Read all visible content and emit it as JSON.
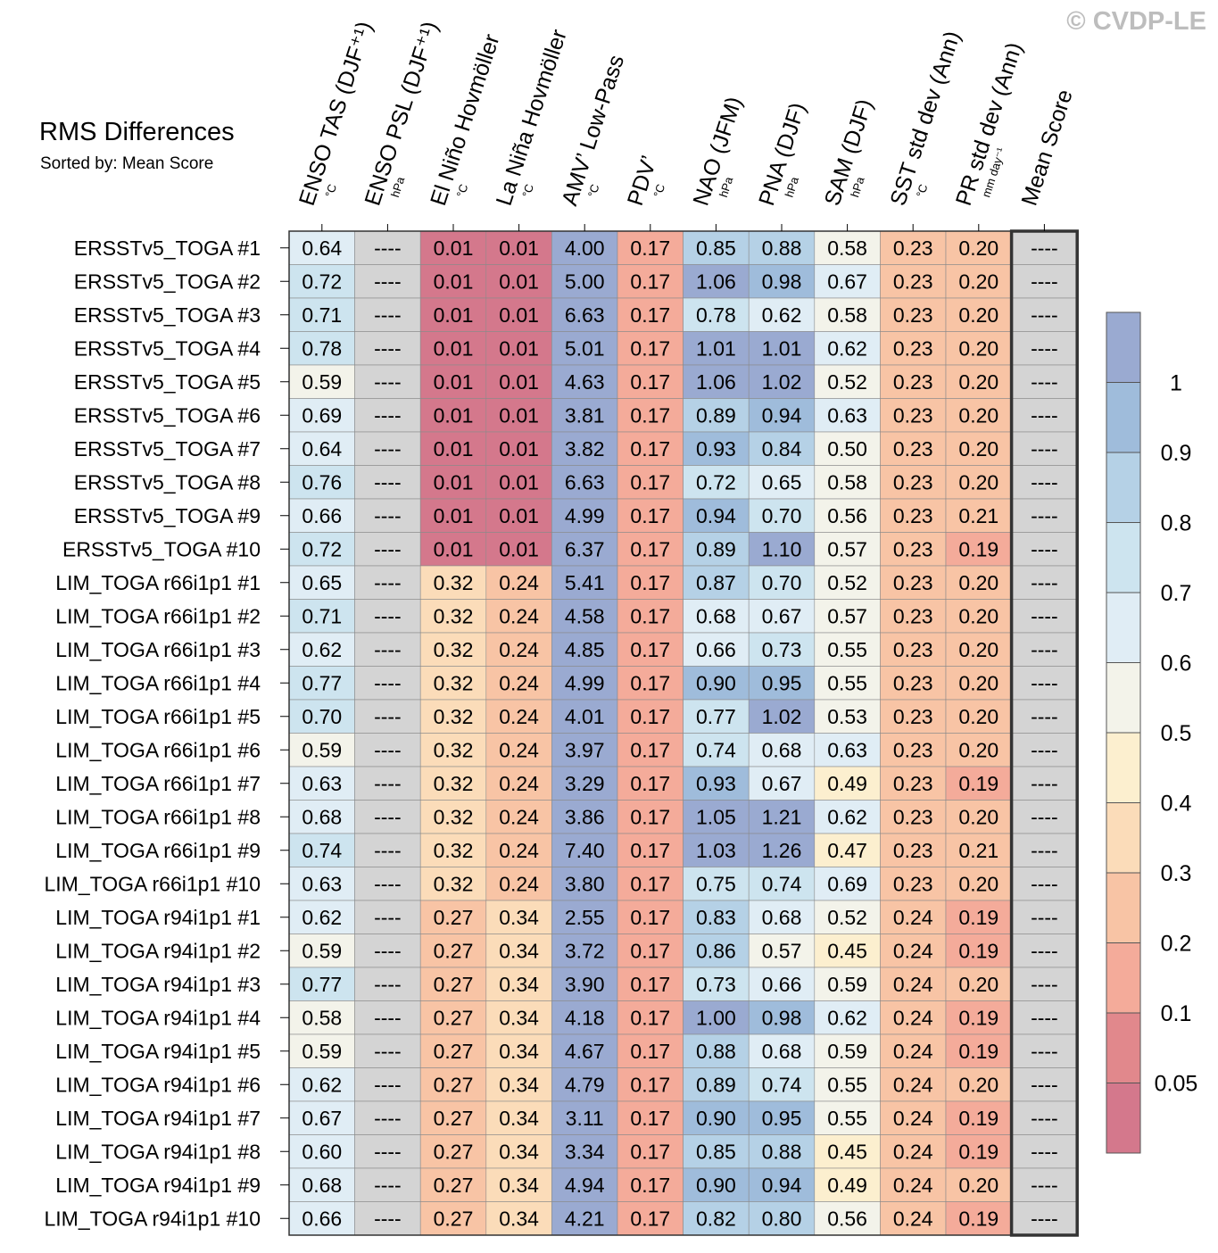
{
  "watermark": "© CVDP-LE",
  "chart_data": {
    "type": "heatmap",
    "title": "RMS Differences",
    "subtitle": "Sorted by: Mean Score",
    "missing_label": "----",
    "columns": [
      {
        "name": "ENSO TAS (DJF⁺¹)",
        "unit": "°C"
      },
      {
        "name": "ENSO PSL (DJF⁺¹)",
        "unit": "hPa"
      },
      {
        "name": "El Niño Hovmöller",
        "unit": "°C"
      },
      {
        "name": "La Niña Hovmöller",
        "unit": "°C"
      },
      {
        "name": "AMV’ Low-Pass",
        "unit": "°C"
      },
      {
        "name": "PDV’",
        "unit": "°C"
      },
      {
        "name": "NAO (JFM)",
        "unit": "hPa"
      },
      {
        "name": "PNA (DJF)",
        "unit": "hPa"
      },
      {
        "name": "SAM (DJF)",
        "unit": "hPa"
      },
      {
        "name": "SST std dev (Ann)",
        "unit": "°C"
      },
      {
        "name": "PR std dev (Ann)",
        "unit": "mm day⁻¹"
      },
      {
        "name": "Mean Score",
        "unit": ""
      }
    ],
    "rows": [
      {
        "label": "ERSSTv5_TOGA #1",
        "values": [
          "0.64",
          "----",
          "0.01",
          "0.01",
          "4.00",
          "0.17",
          "0.85",
          "0.88",
          "0.58",
          "0.23",
          "0.20",
          "----"
        ]
      },
      {
        "label": "ERSSTv5_TOGA #2",
        "values": [
          "0.72",
          "----",
          "0.01",
          "0.01",
          "5.00",
          "0.17",
          "1.06",
          "0.98",
          "0.67",
          "0.23",
          "0.20",
          "----"
        ]
      },
      {
        "label": "ERSSTv5_TOGA #3",
        "values": [
          "0.71",
          "----",
          "0.01",
          "0.01",
          "6.63",
          "0.17",
          "0.78",
          "0.62",
          "0.58",
          "0.23",
          "0.20",
          "----"
        ]
      },
      {
        "label": "ERSSTv5_TOGA #4",
        "values": [
          "0.78",
          "----",
          "0.01",
          "0.01",
          "5.01",
          "0.17",
          "1.01",
          "1.01",
          "0.62",
          "0.23",
          "0.20",
          "----"
        ]
      },
      {
        "label": "ERSSTv5_TOGA #5",
        "values": [
          "0.59",
          "----",
          "0.01",
          "0.01",
          "4.63",
          "0.17",
          "1.06",
          "1.02",
          "0.52",
          "0.23",
          "0.20",
          "----"
        ]
      },
      {
        "label": "ERSSTv5_TOGA #6",
        "values": [
          "0.69",
          "----",
          "0.01",
          "0.01",
          "3.81",
          "0.17",
          "0.89",
          "0.94",
          "0.63",
          "0.23",
          "0.20",
          "----"
        ]
      },
      {
        "label": "ERSSTv5_TOGA #7",
        "values": [
          "0.64",
          "----",
          "0.01",
          "0.01",
          "3.82",
          "0.17",
          "0.93",
          "0.84",
          "0.50",
          "0.23",
          "0.20",
          "----"
        ]
      },
      {
        "label": "ERSSTv5_TOGA #8",
        "values": [
          "0.76",
          "----",
          "0.01",
          "0.01",
          "6.63",
          "0.17",
          "0.72",
          "0.65",
          "0.58",
          "0.23",
          "0.20",
          "----"
        ]
      },
      {
        "label": "ERSSTv5_TOGA #9",
        "values": [
          "0.66",
          "----",
          "0.01",
          "0.01",
          "4.99",
          "0.17",
          "0.94",
          "0.70",
          "0.56",
          "0.23",
          "0.21",
          "----"
        ]
      },
      {
        "label": "ERSSTv5_TOGA #10",
        "values": [
          "0.72",
          "----",
          "0.01",
          "0.01",
          "6.37",
          "0.17",
          "0.89",
          "1.10",
          "0.57",
          "0.23",
          "0.19",
          "----"
        ]
      },
      {
        "label": "LIM_TOGA r66i1p1 #1",
        "values": [
          "0.65",
          "----",
          "0.32",
          "0.24",
          "5.41",
          "0.17",
          "0.87",
          "0.70",
          "0.52",
          "0.23",
          "0.20",
          "----"
        ]
      },
      {
        "label": "LIM_TOGA r66i1p1 #2",
        "values": [
          "0.71",
          "----",
          "0.32",
          "0.24",
          "4.58",
          "0.17",
          "0.68",
          "0.67",
          "0.57",
          "0.23",
          "0.20",
          "----"
        ]
      },
      {
        "label": "LIM_TOGA r66i1p1 #3",
        "values": [
          "0.62",
          "----",
          "0.32",
          "0.24",
          "4.85",
          "0.17",
          "0.66",
          "0.73",
          "0.55",
          "0.23",
          "0.20",
          "----"
        ]
      },
      {
        "label": "LIM_TOGA r66i1p1 #4",
        "values": [
          "0.77",
          "----",
          "0.32",
          "0.24",
          "4.99",
          "0.17",
          "0.90",
          "0.95",
          "0.55",
          "0.23",
          "0.20",
          "----"
        ]
      },
      {
        "label": "LIM_TOGA r66i1p1 #5",
        "values": [
          "0.70",
          "----",
          "0.32",
          "0.24",
          "4.01",
          "0.17",
          "0.77",
          "1.02",
          "0.53",
          "0.23",
          "0.20",
          "----"
        ]
      },
      {
        "label": "LIM_TOGA r66i1p1 #6",
        "values": [
          "0.59",
          "----",
          "0.32",
          "0.24",
          "3.97",
          "0.17",
          "0.74",
          "0.68",
          "0.63",
          "0.23",
          "0.20",
          "----"
        ]
      },
      {
        "label": "LIM_TOGA r66i1p1 #7",
        "values": [
          "0.63",
          "----",
          "0.32",
          "0.24",
          "3.29",
          "0.17",
          "0.93",
          "0.67",
          "0.49",
          "0.23",
          "0.19",
          "----"
        ]
      },
      {
        "label": "LIM_TOGA r66i1p1 #8",
        "values": [
          "0.68",
          "----",
          "0.32",
          "0.24",
          "3.86",
          "0.17",
          "1.05",
          "1.21",
          "0.62",
          "0.23",
          "0.20",
          "----"
        ]
      },
      {
        "label": "LIM_TOGA r66i1p1 #9",
        "values": [
          "0.74",
          "----",
          "0.32",
          "0.24",
          "7.40",
          "0.17",
          "1.03",
          "1.26",
          "0.47",
          "0.23",
          "0.21",
          "----"
        ]
      },
      {
        "label": "LIM_TOGA r66i1p1 #10",
        "values": [
          "0.63",
          "----",
          "0.32",
          "0.24",
          "3.80",
          "0.17",
          "0.75",
          "0.74",
          "0.69",
          "0.23",
          "0.20",
          "----"
        ]
      },
      {
        "label": "LIM_TOGA r94i1p1 #1",
        "values": [
          "0.62",
          "----",
          "0.27",
          "0.34",
          "2.55",
          "0.17",
          "0.83",
          "0.68",
          "0.52",
          "0.24",
          "0.19",
          "----"
        ]
      },
      {
        "label": "LIM_TOGA r94i1p1 #2",
        "values": [
          "0.59",
          "----",
          "0.27",
          "0.34",
          "3.72",
          "0.17",
          "0.86",
          "0.57",
          "0.45",
          "0.24",
          "0.19",
          "----"
        ]
      },
      {
        "label": "LIM_TOGA r94i1p1 #3",
        "values": [
          "0.77",
          "----",
          "0.27",
          "0.34",
          "3.90",
          "0.17",
          "0.73",
          "0.66",
          "0.59",
          "0.24",
          "0.20",
          "----"
        ]
      },
      {
        "label": "LIM_TOGA r94i1p1 #4",
        "values": [
          "0.58",
          "----",
          "0.27",
          "0.34",
          "4.18",
          "0.17",
          "1.00",
          "0.98",
          "0.62",
          "0.24",
          "0.19",
          "----"
        ]
      },
      {
        "label": "LIM_TOGA r94i1p1 #5",
        "values": [
          "0.59",
          "----",
          "0.27",
          "0.34",
          "4.67",
          "0.17",
          "0.88",
          "0.68",
          "0.59",
          "0.24",
          "0.19",
          "----"
        ]
      },
      {
        "label": "LIM_TOGA r94i1p1 #6",
        "values": [
          "0.62",
          "----",
          "0.27",
          "0.34",
          "4.79",
          "0.17",
          "0.89",
          "0.74",
          "0.55",
          "0.24",
          "0.20",
          "----"
        ]
      },
      {
        "label": "LIM_TOGA r94i1p1 #7",
        "values": [
          "0.67",
          "----",
          "0.27",
          "0.34",
          "3.11",
          "0.17",
          "0.90",
          "0.95",
          "0.55",
          "0.24",
          "0.19",
          "----"
        ]
      },
      {
        "label": "LIM_TOGA r94i1p1 #8",
        "values": [
          "0.60",
          "----",
          "0.27",
          "0.34",
          "3.34",
          "0.17",
          "0.85",
          "0.88",
          "0.45",
          "0.24",
          "0.19",
          "----"
        ]
      },
      {
        "label": "LIM_TOGA r94i1p1 #9",
        "values": [
          "0.68",
          "----",
          "0.27",
          "0.34",
          "4.94",
          "0.17",
          "0.90",
          "0.94",
          "0.49",
          "0.24",
          "0.20",
          "----"
        ]
      },
      {
        "label": "LIM_TOGA r94i1p1 #10",
        "values": [
          "0.66",
          "----",
          "0.27",
          "0.34",
          "4.21",
          "0.17",
          "0.82",
          "0.80",
          "0.56",
          "0.24",
          "0.19",
          "----"
        ]
      }
    ],
    "colorbar": {
      "boundaries": [
        0.05,
        0.1,
        0.2,
        0.3,
        0.4,
        0.5,
        0.6,
        0.7,
        0.8,
        0.9,
        1
      ],
      "tick_labels": [
        "0.05",
        "0.1",
        "0.2",
        "0.3",
        "0.4",
        "0.5",
        "0.6",
        "0.7",
        "0.8",
        "0.9",
        "1"
      ],
      "colors": [
        "#d4788c",
        "#e1888c",
        "#f4ab9a",
        "#f8c4a5",
        "#fbdcb9",
        "#fcefcf",
        "#f3f3ea",
        "#e0edf5",
        "#cde4ef",
        "#b5d1e6",
        "#9fbcdb",
        "#9aaad1"
      ],
      "missing_color": "#d4d4d4"
    }
  }
}
